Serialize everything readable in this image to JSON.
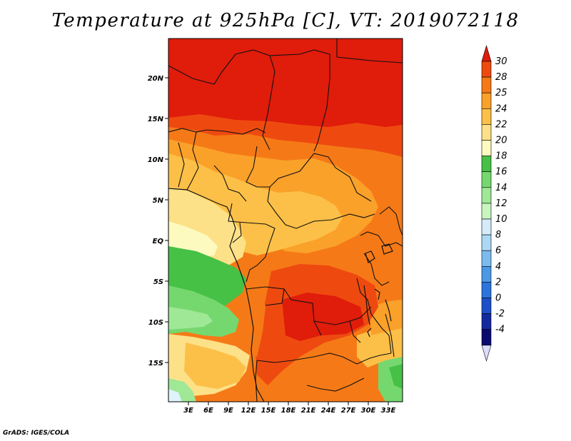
{
  "title": "Temperature at 925hPa [C], VT: 2019072118",
  "credit": "GrADS: IGES/COLA",
  "map": {
    "lat_ticks": [
      "20N",
      "15N",
      "10N",
      "5N",
      "EQ",
      "5S",
      "10S",
      "15S"
    ],
    "lon_ticks": [
      "3E",
      "6E",
      "9E",
      "12E",
      "15E",
      "18E",
      "21E",
      "24E",
      "27E",
      "30E",
      "33E"
    ]
  },
  "colorbar": {
    "levels": [
      "30",
      "28",
      "25",
      "24",
      "22",
      "20",
      "18",
      "16",
      "14",
      "12",
      "10",
      "8",
      "6",
      "4",
      "2",
      "0",
      "-2",
      "-4"
    ],
    "colors": [
      "#e01c0b",
      "#ee4a10",
      "#f57a17",
      "#faa12a",
      "#fcc048",
      "#fde188",
      "#fdfac0",
      "#46c146",
      "#75d86f",
      "#9fe896",
      "#c8f4c0",
      "#d5ecf8",
      "#acd8f4",
      "#7bbbee",
      "#4b98e4",
      "#2b74dc",
      "#1e4fc8",
      "#14299e",
      "#0a0a6e",
      "#dcdcfa"
    ]
  },
  "icons": {
    "colorbar": "colorbar-gradient"
  }
}
